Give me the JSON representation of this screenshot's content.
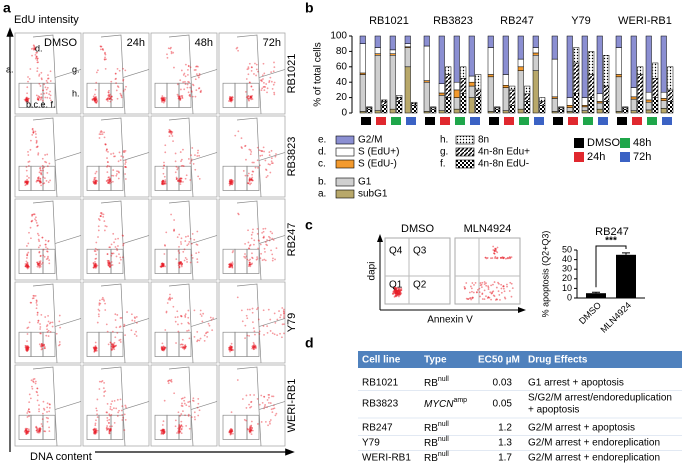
{
  "panel_labels": [
    "a",
    "b",
    "c",
    "d"
  ],
  "panel_a": {
    "y_axis": "EdU intensity",
    "x_axis": "DNA content",
    "columns": [
      "DMSO",
      "24h",
      "48h",
      "72h"
    ],
    "rows": [
      "RB1021",
      "RB3823",
      "RB247",
      "Y79",
      "WERI-RB1"
    ],
    "gates": [
      "a.",
      "d.",
      "g.",
      "h.",
      "b.c.e. f."
    ]
  },
  "chart_data": [
    {
      "type": "stacked-bar",
      "ylabel": "% of total cells",
      "groups": [
        "RB1021",
        "RB3823",
        "RB247",
        "Y79",
        "WERI-RB1"
      ],
      "conditions": [
        {
          "name": "DMSO",
          "color": "#000000"
        },
        {
          "name": "24h",
          "color": "#e0282e"
        },
        {
          "name": "48h",
          "color": "#1fa64a"
        },
        {
          "name": "72h",
          "color": "#3b62c4"
        }
      ],
      "ylim": [
        0,
        100
      ],
      "yticks": [
        0,
        20,
        40,
        60,
        80,
        100
      ],
      "series": [
        {
          "key": "a.",
          "name": "subG1",
          "color": "#b8a86a",
          "bar": "cycle",
          "values": [
            [
              2,
              3,
              5,
              60
            ],
            [
              2,
              3,
              5,
              20
            ],
            [
              2,
              3,
              5,
              55
            ],
            [
              2,
              2,
              3,
              5
            ],
            [
              2,
              3,
              4,
              6
            ]
          ]
        },
        {
          "key": "b.",
          "name": "G1",
          "color": "#cfcfcf",
          "bar": "cycle",
          "values": [
            [
              48,
              72,
              70,
              25
            ],
            [
              38,
              20,
              15,
              15
            ],
            [
              45,
              30,
              50,
              20
            ],
            [
              17,
              5,
              5,
              8
            ],
            [
              45,
              15,
              10,
              10
            ]
          ]
        },
        {
          "key": "c.",
          "name": "S (EdU-)",
          "color": "#f39a2e",
          "bar": "cycle",
          "values": [
            [
              2,
              2,
              2,
              1
            ],
            [
              2,
              3,
              10,
              5
            ],
            [
              3,
              3,
              5,
              3
            ],
            [
              2,
              3,
              2,
              2
            ],
            [
              3,
              3,
              3,
              3
            ]
          ]
        },
        {
          "key": "d.",
          "name": "S (EdU+)",
          "color": "#ffffff",
          "bar": "cycle",
          "values": [
            [
              38,
              8,
              5,
              4
            ],
            [
              45,
              12,
              10,
              8
            ],
            [
              35,
              14,
              10,
              7
            ],
            [
              49,
              10,
              10,
              10
            ],
            [
              35,
              12,
              10,
              8
            ]
          ]
        },
        {
          "key": "e.",
          "name": "G2/M",
          "color": "#8b8fd2",
          "bar": "cycle",
          "values": [
            [
              10,
              15,
              18,
              10
            ],
            [
              13,
              62,
              60,
              52
            ],
            [
              15,
              50,
              30,
              15
            ],
            [
              30,
              80,
              80,
              75
            ],
            [
              15,
              67,
              73,
              73
            ]
          ]
        },
        {
          "key": "f.",
          "name": "4n-8n EdU-",
          "pattern": "checker",
          "bar": "ploidy",
          "values": [
            [
              5,
              10,
              15,
              10
            ],
            [
              5,
              20,
              25,
              20
            ],
            [
              5,
              10,
              15,
              10
            ],
            [
              5,
              25,
              20,
              15
            ],
            [
              5,
              15,
              20,
              15
            ]
          ]
        },
        {
          "key": "g.",
          "name": "4n-8n Edu+",
          "pattern": "stripes",
          "bar": "ploidy",
          "values": [
            [
              2,
              5,
              5,
              2
            ],
            [
              2,
              30,
              20,
              10
            ],
            [
              2,
              20,
              10,
              5
            ],
            [
              2,
              40,
              30,
              20
            ],
            [
              2,
              35,
              25,
              15
            ]
          ]
        },
        {
          "key": "h.",
          "name": "8n",
          "pattern": "dots",
          "bar": "ploidy",
          "values": [
            [
              1,
              2,
              3,
              2
            ],
            [
              1,
              10,
              15,
              20
            ],
            [
              1,
              5,
              10,
              5
            ],
            [
              1,
              20,
              30,
              40
            ],
            [
              1,
              10,
              20,
              30
            ]
          ]
        }
      ]
    },
    {
      "type": "bar",
      "title": "RB247",
      "ylabel": "% apoptosis (Q2+Q3)",
      "categories": [
        "DMSO",
        "MLN4924"
      ],
      "values": [
        5,
        45
      ],
      "errors": [
        1,
        2
      ],
      "colors": [
        "#000000",
        "#000000"
      ],
      "ylim": [
        0,
        50
      ],
      "yticks": [
        0,
        10,
        20,
        30,
        40,
        50
      ],
      "annotation": "***"
    }
  ],
  "panel_c": {
    "plots": [
      "DMSO",
      "MLN4924"
    ],
    "quadrants": [
      "Q4",
      "Q3",
      "Q1",
      "Q2"
    ],
    "y_axis": "dapi",
    "x_axis": "Annexin V"
  },
  "table": {
    "header": [
      "Cell line",
      "Type",
      "EC50 µM",
      "Drug Effects"
    ],
    "rows": [
      {
        "cell_line": "RB1021",
        "type": "RB",
        "type_sup": "null",
        "ec50": 0.03,
        "effects": [
          "G1 arrest + apoptosis"
        ]
      },
      {
        "cell_line": "RB3823",
        "type": "MYCN",
        "type_sup": "amp",
        "ec50": 0.05,
        "effects": [
          "S/G2/M arrest/endoreduplication",
          "+ apoptosis"
        ]
      },
      {
        "cell_line": "RB247",
        "type": "RB",
        "type_sup": "null",
        "ec50": 1.2,
        "effects": [
          "G2/M arrest + apoptosis"
        ]
      },
      {
        "cell_line": "Y79",
        "type": "RB",
        "type_sup": "null",
        "ec50": 1.3,
        "effects": [
          "G2/M arrest + endoreplication"
        ]
      },
      {
        "cell_line": "WERI-RB1",
        "type": "RB",
        "type_sup": "null",
        "ec50": 1.7,
        "effects": [
          "G2/M arrest + endoreplication"
        ]
      }
    ]
  }
}
